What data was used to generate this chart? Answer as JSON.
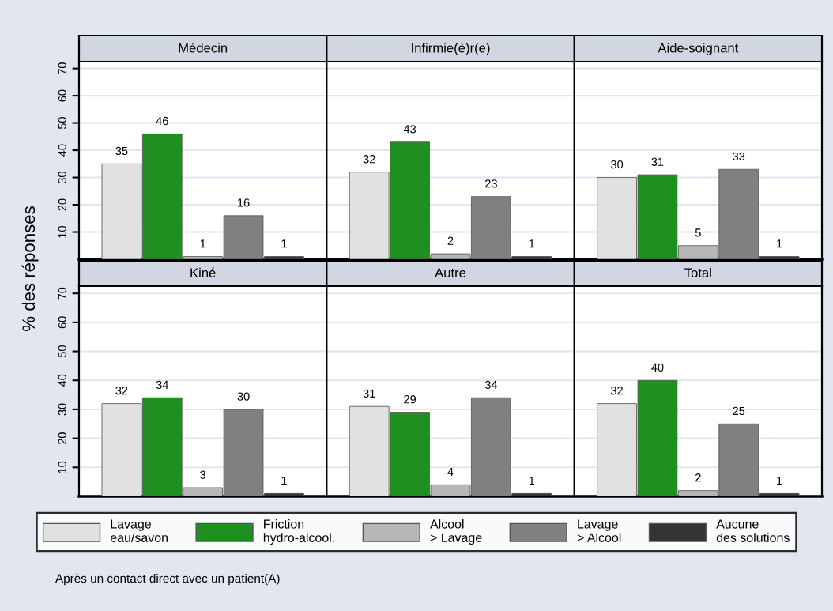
{
  "chart_data": [
    {
      "type": "bar",
      "ylabel": "% des réponses",
      "categories": [
        "Médecin",
        "Infirmie(è)r(e)",
        "Aide-soignant"
      ],
      "ylim": [
        0,
        72.5
      ],
      "yticks": [
        10,
        20,
        30,
        40,
        50,
        60,
        70
      ],
      "grid": "y",
      "legend": "bottom",
      "data_labels": true,
      "series": [
        {
          "name": "Lavage eau/savon",
          "color": "#e1e1e1",
          "values": [
            35,
            32,
            30
          ]
        },
        {
          "name": "Friction hydro-alcool.",
          "color": "#1f901f",
          "values": [
            46,
            43,
            31
          ]
        },
        {
          "name": "Alcool > Lavage",
          "color": "#b7b7b7",
          "values": [
            1,
            2,
            5
          ]
        },
        {
          "name": "Lavage > Alcool",
          "color": "#808080",
          "values": [
            16,
            23,
            33
          ]
        },
        {
          "name": "Aucune des solutions",
          "color": "#333333",
          "values": [
            1,
            1,
            1
          ]
        }
      ]
    },
    {
      "type": "bar",
      "categories": [
        "Kiné",
        "Autre",
        "Total"
      ],
      "ylim": [
        0,
        72.5
      ],
      "yticks": [
        10,
        20,
        30,
        40,
        50,
        60,
        70
      ],
      "grid": "y",
      "data_labels": true,
      "annotations": [
        "Après un contact direct avec un patient(A)"
      ],
      "series": [
        {
          "color": "#e1e1e1",
          "values": [
            32,
            31,
            32
          ]
        },
        {
          "color": "#1f901f",
          "values": [
            34,
            29,
            40
          ]
        },
        {
          "color": "#b7b7b7",
          "values": [
            3,
            4,
            2
          ]
        },
        {
          "color": "#808080",
          "values": [
            30,
            34,
            25
          ]
        },
        {
          "color": "#333333",
          "values": [
            1,
            1,
            1
          ]
        }
      ]
    }
  ]
}
